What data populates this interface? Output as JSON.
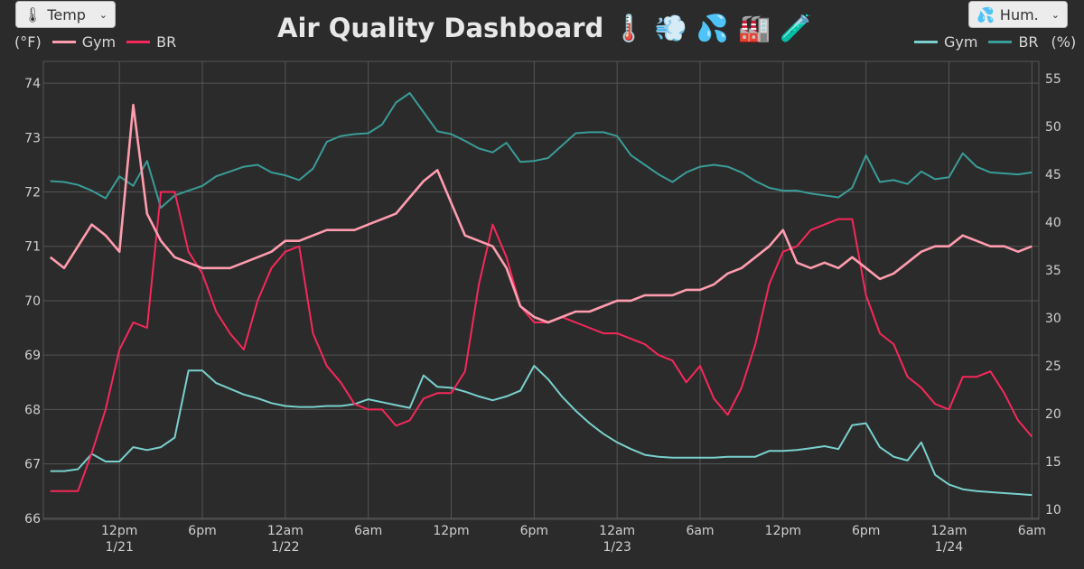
{
  "header": {
    "title": "Air Quality Dashboard 🌡️ 💨 💦 🏭 🧪",
    "left_select": {
      "icon": "thermometer-emoji",
      "label": "Temp"
    },
    "right_select": {
      "icon": "droplets-emoji",
      "label": "Hum."
    }
  },
  "legend_left": {
    "unit": "(°F)",
    "items": [
      "Gym",
      "BR"
    ]
  },
  "legend_right": {
    "unit": "(%)",
    "items": [
      "Gym",
      "BR"
    ]
  },
  "colors": {
    "temp_gym": "#ff9cae",
    "temp_br": "#f5285a",
    "hum_gym": "#79d0cd",
    "hum_br": "#3a9c98",
    "background": "#2b2b2b",
    "grid": "#555555"
  },
  "chart_data": {
    "type": "line",
    "grid": true,
    "x_range": [
      "1/21 06:30",
      "1/24 06:30"
    ],
    "x_ticks": [
      {
        "at": "1/21 12:00",
        "label": "12pm",
        "sub": "1/21"
      },
      {
        "at": "1/21 18:00",
        "label": "6pm",
        "sub": ""
      },
      {
        "at": "1/22 00:00",
        "label": "12am",
        "sub": "1/22"
      },
      {
        "at": "1/22 06:00",
        "label": "6am",
        "sub": ""
      },
      {
        "at": "1/22 12:00",
        "label": "12pm",
        "sub": ""
      },
      {
        "at": "1/22 18:00",
        "label": "6pm",
        "sub": ""
      },
      {
        "at": "1/23 00:00",
        "label": "12am",
        "sub": "1/23"
      },
      {
        "at": "1/23 06:00",
        "label": "6am",
        "sub": ""
      },
      {
        "at": "1/23 12:00",
        "label": "12pm",
        "sub": ""
      },
      {
        "at": "1/23 18:00",
        "label": "6pm",
        "sub": ""
      },
      {
        "at": "1/24 00:00",
        "label": "12am",
        "sub": "1/24"
      },
      {
        "at": "1/24 06:00",
        "label": "6am",
        "sub": ""
      }
    ],
    "y_left": {
      "unit": "°F",
      "range": [
        65.98,
        74.4
      ],
      "ticks": [
        66,
        67,
        68,
        69,
        70,
        71,
        72,
        73,
        74
      ]
    },
    "y_right": {
      "unit": "%",
      "range": [
        8.96,
        56.8
      ],
      "ticks": [
        10,
        15,
        20,
        25,
        30,
        35,
        40,
        45,
        50,
        55
      ]
    },
    "x": [
      "1/21 07:00",
      "1/21 08:00",
      "1/21 09:00",
      "1/21 10:00",
      "1/21 11:00",
      "1/21 12:00",
      "1/21 13:00",
      "1/21 14:00",
      "1/21 15:00",
      "1/21 16:00",
      "1/21 17:00",
      "1/21 18:00",
      "1/21 19:00",
      "1/21 20:00",
      "1/21 21:00",
      "1/21 22:00",
      "1/21 23:00",
      "1/22 00:00",
      "1/22 01:00",
      "1/22 02:00",
      "1/22 03:00",
      "1/22 04:00",
      "1/22 05:00",
      "1/22 06:00",
      "1/22 07:00",
      "1/22 08:00",
      "1/22 09:00",
      "1/22 10:00",
      "1/22 11:00",
      "1/22 12:00",
      "1/22 13:00",
      "1/22 14:00",
      "1/22 15:00",
      "1/22 16:00",
      "1/22 17:00",
      "1/22 18:00",
      "1/22 19:00",
      "1/22 20:00",
      "1/22 21:00",
      "1/22 22:00",
      "1/22 23:00",
      "1/23 00:00",
      "1/23 01:00",
      "1/23 02:00",
      "1/23 03:00",
      "1/23 04:00",
      "1/23 05:00",
      "1/23 06:00",
      "1/23 07:00",
      "1/23 08:00",
      "1/23 09:00",
      "1/23 10:00",
      "1/23 11:00",
      "1/23 12:00",
      "1/23 13:00",
      "1/23 14:00",
      "1/23 15:00",
      "1/23 16:00",
      "1/23 17:00",
      "1/23 18:00",
      "1/23 19:00",
      "1/23 20:00",
      "1/23 21:00",
      "1/23 22:00",
      "1/23 23:00",
      "1/24 00:00",
      "1/24 01:00",
      "1/24 02:00",
      "1/24 03:00",
      "1/24 04:00",
      "1/24 05:00",
      "1/24 06:00"
    ],
    "series": [
      {
        "name": "Gym",
        "axis": "left",
        "color_key": "temp_gym",
        "values": [
          70.8,
          70.6,
          71.0,
          71.4,
          71.2,
          70.9,
          73.6,
          71.6,
          71.1,
          70.8,
          70.7,
          70.6,
          70.6,
          70.6,
          70.7,
          70.8,
          70.9,
          71.1,
          71.1,
          71.2,
          71.3,
          71.3,
          71.3,
          71.4,
          71.5,
          71.6,
          71.9,
          72.2,
          72.4,
          71.8,
          71.2,
          71.1,
          71.0,
          70.6,
          69.9,
          69.7,
          69.6,
          69.7,
          69.8,
          69.8,
          69.9,
          70.0,
          70.0,
          70.1,
          70.1,
          70.1,
          70.2,
          70.2,
          70.3,
          70.5,
          70.6,
          70.8,
          71.0,
          71.3,
          70.7,
          70.6,
          70.7,
          70.6,
          70.8,
          70.6,
          70.4,
          70.5,
          70.7,
          70.9,
          71.0,
          71.0,
          71.2,
          71.1,
          71.0,
          71.0,
          70.9,
          71.0
        ]
      },
      {
        "name": "BR",
        "axis": "left",
        "color_key": "temp_br",
        "values": [
          66.5,
          66.5,
          66.5,
          67.2,
          68.0,
          69.1,
          69.6,
          69.5,
          72.0,
          72.0,
          70.9,
          70.5,
          69.8,
          69.4,
          69.1,
          70.0,
          70.6,
          70.9,
          71.0,
          69.4,
          68.8,
          68.5,
          68.1,
          68.0,
          68.0,
          67.7,
          67.8,
          68.2,
          68.3,
          68.3,
          68.7,
          70.3,
          71.4,
          70.8,
          69.9,
          69.6,
          69.6,
          69.7,
          69.6,
          69.5,
          69.4,
          69.4,
          69.3,
          69.2,
          69.0,
          68.9,
          68.5,
          68.8,
          68.2,
          67.9,
          68.4,
          69.2,
          70.3,
          70.9,
          71.0,
          71.3,
          71.4,
          71.5,
          71.5,
          70.1,
          69.4,
          69.2,
          68.6,
          68.4,
          68.1,
          68.0,
          68.6,
          68.6,
          68.7,
          68.3,
          67.8,
          67.5
        ]
      },
      {
        "name": "Gym",
        "axis": "right",
        "color_key": "hum_gym",
        "values": [
          14.0,
          14.0,
          14.2,
          15.8,
          15.0,
          15.0,
          16.5,
          16.2,
          16.5,
          17.5,
          24.5,
          24.5,
          23.2,
          22.6,
          22.0,
          21.6,
          21.1,
          20.8,
          20.7,
          20.7,
          20.8,
          20.8,
          21.0,
          21.5,
          21.2,
          20.9,
          20.6,
          24.0,
          22.8,
          22.7,
          22.3,
          21.8,
          21.4,
          21.8,
          22.4,
          25.0,
          23.6,
          21.8,
          20.3,
          19.0,
          17.9,
          17.0,
          16.3,
          15.7,
          15.5,
          15.4,
          15.4,
          15.4,
          15.4,
          15.5,
          15.5,
          15.5,
          16.1,
          16.1,
          16.2,
          16.4,
          16.6,
          16.3,
          18.8,
          19.0,
          16.5,
          15.5,
          15.1,
          17.0,
          13.6,
          12.6,
          12.1,
          11.9,
          11.8,
          11.7,
          11.6,
          11.5
        ]
      },
      {
        "name": "BR",
        "axis": "right",
        "color_key": "hum_br",
        "values": [
          44.3,
          44.2,
          43.9,
          43.3,
          42.5,
          44.8,
          43.8,
          46.4,
          41.5,
          42.8,
          43.3,
          43.8,
          44.8,
          45.3,
          45.8,
          46.0,
          45.2,
          44.9,
          44.4,
          45.6,
          48.4,
          49.0,
          49.2,
          49.3,
          50.2,
          52.5,
          53.5,
          51.5,
          49.5,
          49.2,
          48.5,
          47.7,
          47.3,
          48.3,
          46.3,
          46.4,
          46.7,
          48.0,
          49.3,
          49.4,
          49.4,
          49.0,
          47.0,
          46.0,
          45.0,
          44.2,
          45.2,
          45.8,
          46.0,
          45.8,
          45.2,
          44.3,
          43.6,
          43.3,
          43.3,
          43.0,
          42.8,
          42.6,
          43.6,
          47.0,
          44.2,
          44.4,
          44.0,
          45.3,
          44.5,
          44.7,
          47.2,
          45.8,
          45.2,
          45.1,
          45.0,
          45.2
        ]
      }
    ]
  }
}
